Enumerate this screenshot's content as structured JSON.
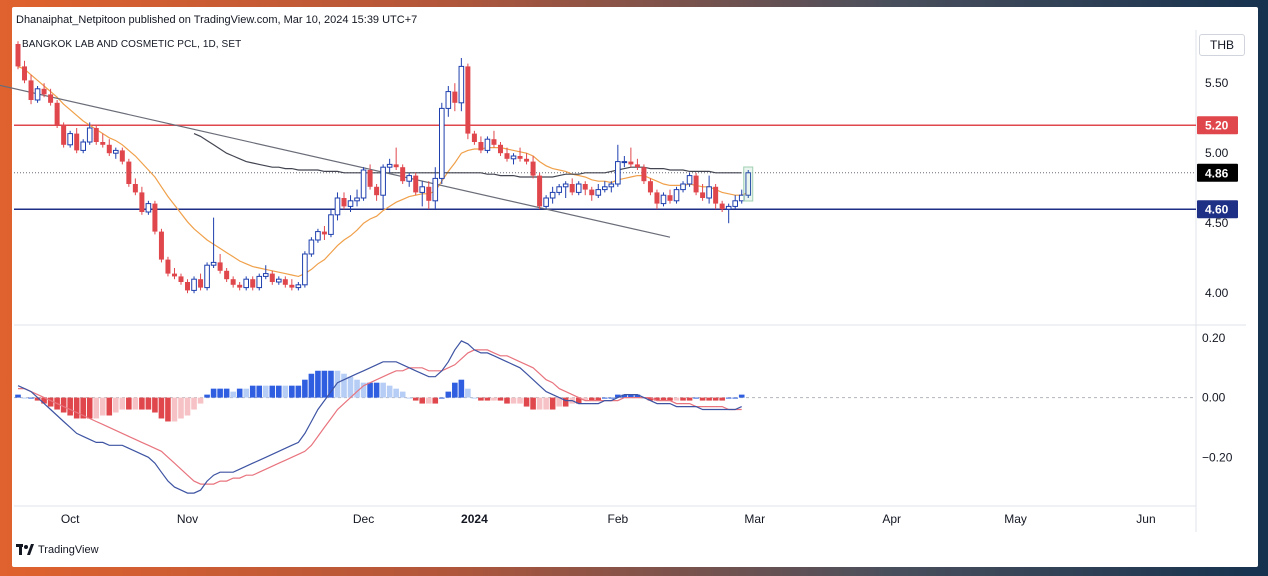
{
  "header": {
    "publisher": "Dhanaiphat_Netpitoon published on TradingView.com, Mar 10, 2024 15:39 UTC+7",
    "symbol": "BANGKOK LAB AND COSMETIC PCL, 1D, SET",
    "currency": "THB"
  },
  "footer": {
    "brand": "TradingView"
  },
  "colors": {
    "up": "#1e3fae",
    "down": "#e0474c",
    "ema_fast": "#f0a04a",
    "ema_slow": "#434651",
    "resistance": "#e0474c",
    "support": "#1e2f86",
    "macd_line": "#3e54a3",
    "signal_line": "#e8747e",
    "hist_pos_strong": "#2f5fe0",
    "hist_pos_weak": "#b6cdf5",
    "hist_neg_strong": "#e0474c",
    "hist_neg_weak": "#f6c2c5"
  },
  "chart_data": [
    {
      "type": "candlestick",
      "symbol": "BANGKOK LAB AND COSMETIC PCL",
      "ylim": [
        3.78,
        5.88
      ],
      "yticks": [
        "5.50",
        "5.00",
        "4.50",
        "4.00"
      ],
      "xticks": [
        "Oct",
        "Nov",
        "Dec",
        "2024",
        "Feb",
        "Mar",
        "Apr",
        "May",
        "Jun"
      ],
      "badges": [
        {
          "label": "5.20",
          "value": 5.2,
          "style": "resistance"
        },
        {
          "label": "4.86",
          "value": 4.86,
          "style": "last"
        },
        {
          "label": "4.60",
          "value": 4.6,
          "style": "support"
        }
      ],
      "hlines": [
        {
          "value": 5.2,
          "style": "resistance"
        },
        {
          "value": 4.6,
          "style": "support"
        },
        {
          "value": 4.86,
          "style": "last-dotted"
        }
      ],
      "trendline": {
        "from": [
          -27,
          5.74
        ],
        "to": [
          100,
          4.4
        ]
      },
      "ohlc": [
        [
          5.78,
          5.8,
          5.6,
          5.62
        ],
        [
          5.62,
          5.66,
          5.5,
          5.52
        ],
        [
          5.52,
          5.56,
          5.35,
          5.38
        ],
        [
          5.38,
          5.48,
          5.36,
          5.46
        ],
        [
          5.46,
          5.5,
          5.4,
          5.42
        ],
        [
          5.42,
          5.46,
          5.34,
          5.36
        ],
        [
          5.36,
          5.38,
          5.18,
          5.2
        ],
        [
          5.2,
          5.22,
          5.04,
          5.06
        ],
        [
          5.06,
          5.16,
          5.04,
          5.14
        ],
        [
          5.14,
          5.18,
          5,
          5.02
        ],
        [
          5.02,
          5.1,
          5,
          5.08
        ],
        [
          5.08,
          5.22,
          5.06,
          5.18
        ],
        [
          5.18,
          5.2,
          5.06,
          5.08
        ],
        [
          5.08,
          5.14,
          5.04,
          5.06
        ],
        [
          5.06,
          5.1,
          4.98,
          5
        ],
        [
          5,
          5.04,
          4.96,
          5.02
        ],
        [
          5.02,
          5.04,
          4.92,
          4.94
        ],
        [
          4.94,
          4.96,
          4.76,
          4.78
        ],
        [
          4.78,
          4.82,
          4.7,
          4.72
        ],
        [
          4.72,
          4.76,
          4.56,
          4.58
        ],
        [
          4.58,
          4.66,
          4.56,
          4.64
        ],
        [
          4.64,
          4.66,
          4.42,
          4.44
        ],
        [
          4.44,
          4.46,
          4.22,
          4.24
        ],
        [
          4.24,
          4.26,
          4.12,
          4.14
        ],
        [
          4.14,
          4.18,
          4.1,
          4.12
        ],
        [
          4.12,
          4.14,
          4.06,
          4.08
        ],
        [
          4.08,
          4.1,
          4,
          4.02
        ],
        [
          4.02,
          4.12,
          4,
          4.1
        ],
        [
          4.1,
          4.14,
          4.02,
          4.04
        ],
        [
          4.04,
          4.22,
          4.02,
          4.2
        ],
        [
          4.2,
          4.54,
          4.18,
          4.22
        ],
        [
          4.22,
          4.28,
          4.14,
          4.16
        ],
        [
          4.16,
          4.18,
          4.08,
          4.1
        ],
        [
          4.1,
          4.12,
          4.04,
          4.06
        ],
        [
          4.06,
          4.08,
          4.02,
          4.04
        ],
        [
          4.04,
          4.12,
          4.02,
          4.1
        ],
        [
          4.1,
          4.12,
          4.02,
          4.04
        ],
        [
          4.04,
          4.14,
          4.02,
          4.12
        ],
        [
          4.12,
          4.2,
          4.1,
          4.14
        ],
        [
          4.14,
          4.16,
          4.06,
          4.08
        ],
        [
          4.08,
          4.12,
          4.06,
          4.1
        ],
        [
          4.1,
          4.12,
          4.04,
          4.06
        ],
        [
          4.06,
          4.1,
          4.02,
          4.04
        ],
        [
          4.04,
          4.08,
          4.02,
          4.06
        ],
        [
          4.06,
          4.3,
          4.04,
          4.28
        ],
        [
          4.28,
          4.4,
          4.26,
          4.38
        ],
        [
          4.38,
          4.46,
          4.36,
          4.44
        ],
        [
          4.44,
          4.48,
          4.38,
          4.42
        ],
        [
          4.42,
          4.6,
          4.4,
          4.56
        ],
        [
          4.56,
          4.72,
          4.52,
          4.68
        ],
        [
          4.68,
          4.72,
          4.6,
          4.62
        ],
        [
          4.62,
          4.7,
          4.58,
          4.66
        ],
        [
          4.66,
          4.74,
          4.62,
          4.68
        ],
        [
          4.68,
          4.9,
          4.66,
          4.88
        ],
        [
          4.88,
          4.92,
          4.74,
          4.76
        ],
        [
          4.76,
          4.78,
          4.66,
          4.7
        ],
        [
          4.7,
          4.92,
          4.6,
          4.9
        ],
        [
          4.9,
          4.96,
          4.86,
          4.92
        ],
        [
          4.92,
          5.04,
          4.88,
          4.9
        ],
        [
          4.9,
          4.92,
          4.78,
          4.8
        ],
        [
          4.8,
          4.86,
          4.76,
          4.84
        ],
        [
          4.84,
          4.86,
          4.7,
          4.72
        ],
        [
          4.72,
          4.8,
          4.62,
          4.76
        ],
        [
          4.76,
          4.8,
          4.6,
          4.66
        ],
        [
          4.66,
          4.9,
          4.6,
          4.82
        ],
        [
          4.82,
          5.36,
          4.78,
          5.32
        ],
        [
          5.32,
          5.48,
          5.26,
          5.44
        ],
        [
          5.44,
          5.5,
          5.3,
          5.36
        ],
        [
          5.36,
          5.68,
          5.3,
          5.62
        ],
        [
          5.62,
          5.64,
          5.1,
          5.14
        ],
        [
          5.14,
          5.16,
          5.06,
          5.08
        ],
        [
          5.08,
          5.12,
          5,
          5.02
        ],
        [
          5.02,
          5.12,
          5,
          5.1
        ],
        [
          5.1,
          5.16,
          5.04,
          5.06
        ],
        [
          5.06,
          5.08,
          4.98,
          5
        ],
        [
          5,
          5.04,
          4.94,
          4.96
        ],
        [
          4.96,
          5,
          4.92,
          4.98
        ],
        [
          4.98,
          5.04,
          4.94,
          4.96
        ],
        [
          4.96,
          5,
          4.92,
          4.94
        ],
        [
          4.94,
          4.98,
          4.82,
          4.84
        ],
        [
          4.84,
          4.86,
          4.6,
          4.62
        ],
        [
          4.62,
          4.7,
          4.6,
          4.68
        ],
        [
          4.68,
          4.76,
          4.64,
          4.72
        ],
        [
          4.72,
          4.78,
          4.7,
          4.76
        ],
        [
          4.76,
          4.8,
          4.68,
          4.78
        ],
        [
          4.78,
          4.82,
          4.7,
          4.72
        ],
        [
          4.72,
          4.8,
          4.7,
          4.78
        ],
        [
          4.78,
          4.8,
          4.7,
          4.74
        ],
        [
          4.74,
          4.76,
          4.66,
          4.7
        ],
        [
          4.7,
          4.78,
          4.68,
          4.74
        ],
        [
          4.74,
          4.8,
          4.72,
          4.76
        ],
        [
          4.76,
          4.8,
          4.72,
          4.78
        ],
        [
          4.78,
          5.06,
          4.76,
          4.94
        ],
        [
          4.94,
          4.98,
          4.9,
          4.94
        ],
        [
          4.94,
          5.04,
          4.9,
          4.92
        ],
        [
          4.92,
          4.96,
          4.88,
          4.9
        ],
        [
          4.9,
          4.92,
          4.78,
          4.8
        ],
        [
          4.8,
          4.82,
          4.7,
          4.72
        ],
        [
          4.72,
          4.74,
          4.6,
          4.64
        ],
        [
          4.64,
          4.72,
          4.62,
          4.7
        ],
        [
          4.7,
          4.74,
          4.64,
          4.66
        ],
        [
          4.66,
          4.76,
          4.64,
          4.74
        ],
        [
          4.74,
          4.8,
          4.72,
          4.78
        ],
        [
          4.78,
          4.86,
          4.76,
          4.84
        ],
        [
          4.84,
          4.86,
          4.7,
          4.72
        ],
        [
          4.72,
          4.78,
          4.66,
          4.68
        ],
        [
          4.68,
          4.84,
          4.64,
          4.76
        ],
        [
          4.76,
          4.78,
          4.6,
          4.64
        ],
        [
          4.64,
          4.66,
          4.58,
          4.6
        ],
        [
          4.6,
          4.64,
          4.5,
          4.62
        ],
        [
          4.62,
          4.7,
          4.6,
          4.66
        ],
        [
          4.66,
          4.74,
          4.64,
          4.7
        ],
        [
          4.7,
          4.88,
          4.68,
          4.86
        ]
      ],
      "ema_fast": [
        5.62,
        5.6,
        5.56,
        5.52,
        5.48,
        5.44,
        5.4,
        5.35,
        5.31,
        5.27,
        5.23,
        5.2,
        5.17,
        5.14,
        5.11,
        5.09,
        5.06,
        5.02,
        4.98,
        4.93,
        4.88,
        4.83,
        4.76,
        4.69,
        4.63,
        4.57,
        4.51,
        4.46,
        4.42,
        4.38,
        4.35,
        4.32,
        4.29,
        4.26,
        4.23,
        4.21,
        4.19,
        4.18,
        4.17,
        4.16,
        4.15,
        4.14,
        4.13,
        4.12,
        4.14,
        4.17,
        4.21,
        4.24,
        4.29,
        4.34,
        4.38,
        4.41,
        4.45,
        4.5,
        4.53,
        4.55,
        4.59,
        4.62,
        4.65,
        4.67,
        4.69,
        4.7,
        4.71,
        4.71,
        4.73,
        4.8,
        4.87,
        4.93,
        5,
        5.02,
        5.03,
        5.03,
        5.04,
        5.04,
        5.04,
        5.03,
        5.02,
        5.01,
        5,
        4.98,
        4.94,
        4.91,
        4.89,
        4.88,
        4.87,
        4.85,
        4.84,
        4.83,
        4.81,
        4.8,
        4.8,
        4.79,
        4.81,
        4.82,
        4.83,
        4.84,
        4.84,
        4.82,
        4.8,
        4.78,
        4.77,
        4.77,
        4.77,
        4.78,
        4.77,
        4.76,
        4.76,
        4.74,
        4.72,
        4.71,
        4.7,
        4.7,
        4.72
      ],
      "ema_slow": [
        5.14,
        5.12,
        5.09,
        5.06,
        5.03,
        5,
        4.98,
        4.96,
        4.94,
        4.93,
        4.92,
        4.91,
        4.9,
        4.9,
        4.89,
        4.89,
        4.88,
        4.88,
        4.88,
        4.88,
        4.87,
        4.87,
        4.87,
        4.86,
        4.86,
        4.86,
        4.86,
        4.86,
        4.86,
        4.86,
        4.86,
        4.86,
        4.86,
        4.86,
        4.86,
        4.86,
        4.86,
        4.86,
        4.86,
        4.86,
        4.86,
        4.86,
        4.86,
        4.86,
        4.86,
        4.85,
        4.85,
        4.84,
        4.84,
        4.84,
        4.83,
        4.83,
        4.83,
        4.83,
        4.83,
        4.83,
        4.84,
        4.85,
        4.85,
        4.85,
        4.86,
        4.86,
        4.86,
        4.86,
        4.87,
        4.88,
        4.89,
        4.9,
        4.9,
        4.9,
        4.89,
        4.89,
        4.89,
        4.88,
        4.88,
        4.88,
        4.87,
        4.87,
        4.87,
        4.87,
        4.86,
        4.86,
        4.86,
        4.86,
        4.86
      ],
      "ema_slow_start_index": 27
    },
    {
      "type": "macd",
      "ylim": [
        -0.36,
        0.24
      ],
      "yticks": [
        "0.20",
        "0.00",
        "−0.20"
      ],
      "macd": [
        0.04,
        0.03,
        0.02,
        0,
        -0.02,
        -0.04,
        -0.06,
        -0.08,
        -0.1,
        -0.12,
        -0.13,
        -0.14,
        -0.15,
        -0.15,
        -0.16,
        -0.16,
        -0.16,
        -0.17,
        -0.18,
        -0.19,
        -0.2,
        -0.22,
        -0.25,
        -0.28,
        -0.3,
        -0.31,
        -0.32,
        -0.32,
        -0.31,
        -0.28,
        -0.26,
        -0.25,
        -0.25,
        -0.25,
        -0.24,
        -0.23,
        -0.22,
        -0.21,
        -0.2,
        -0.19,
        -0.18,
        -0.17,
        -0.16,
        -0.15,
        -0.12,
        -0.08,
        -0.04,
        -0.01,
        0.02,
        0.05,
        0.06,
        0.07,
        0.08,
        0.09,
        0.1,
        0.11,
        0.12,
        0.12,
        0.12,
        0.11,
        0.1,
        0.09,
        0.08,
        0.07,
        0.07,
        0.09,
        0.12,
        0.16,
        0.19,
        0.18,
        0.16,
        0.15,
        0.15,
        0.14,
        0.13,
        0.12,
        0.11,
        0.1,
        0.08,
        0.06,
        0.04,
        0.02,
        0.01,
        0,
        -0.01,
        -0.01,
        -0.02,
        -0.02,
        -0.02,
        -0.02,
        -0.01,
        -0.01,
        0,
        0.01,
        0.01,
        0.01,
        0,
        -0.01,
        -0.02,
        -0.02,
        -0.02,
        -0.03,
        -0.03,
        -0.03,
        -0.03,
        -0.04,
        -0.04,
        -0.04,
        -0.04,
        -0.04,
        -0.04,
        -0.03
      ],
      "signal": [
        0.03,
        0.03,
        0.02,
        0.01,
        0,
        -0.01,
        -0.02,
        -0.03,
        -0.04,
        -0.05,
        -0.06,
        -0.07,
        -0.08,
        -0.09,
        -0.1,
        -0.11,
        -0.12,
        -0.13,
        -0.14,
        -0.15,
        -0.16,
        -0.17,
        -0.18,
        -0.2,
        -0.22,
        -0.24,
        -0.26,
        -0.28,
        -0.29,
        -0.29,
        -0.29,
        -0.28,
        -0.28,
        -0.27,
        -0.27,
        -0.26,
        -0.26,
        -0.25,
        -0.24,
        -0.23,
        -0.22,
        -0.21,
        -0.2,
        -0.19,
        -0.18,
        -0.16,
        -0.13,
        -0.1,
        -0.07,
        -0.04,
        -0.02,
        0,
        0.02,
        0.04,
        0.05,
        0.06,
        0.07,
        0.08,
        0.09,
        0.09,
        0.1,
        0.1,
        0.1,
        0.09,
        0.09,
        0.09,
        0.1,
        0.11,
        0.13,
        0.15,
        0.16,
        0.16,
        0.16,
        0.15,
        0.14,
        0.14,
        0.13,
        0.12,
        0.11,
        0.1,
        0.08,
        0.06,
        0.05,
        0.03,
        0.02,
        0.01,
        0,
        -0.01,
        -0.01,
        -0.01,
        -0.01,
        -0.01,
        -0.01,
        0,
        0,
        0,
        0,
        0,
        -0.01,
        -0.01,
        -0.01,
        -0.02,
        -0.02,
        -0.02,
        -0.03,
        -0.03,
        -0.03,
        -0.03,
        -0.03,
        -0.04,
        -0.04,
        -0.04
      ]
    }
  ]
}
